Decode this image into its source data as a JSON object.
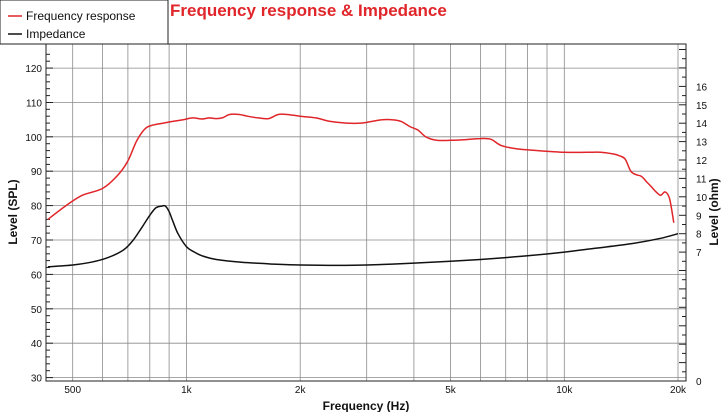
{
  "chart_data": {
    "type": "line",
    "title": "Frequency response & Impedance",
    "xlabel": "Frequency (Hz)",
    "ylabel_left": "Level (SPL)",
    "ylabel_right": "Level (ohm)",
    "x_scale": "log",
    "xlim": [
      425,
      21000
    ],
    "ylim_left": [
      29,
      127
    ],
    "ylim_right": [
      0,
      18.3
    ],
    "x_ticks": [
      {
        "value": 500,
        "label": "500"
      },
      {
        "value": 1000,
        "label": "1k"
      },
      {
        "value": 2000,
        "label": "2k"
      },
      {
        "value": 5000,
        "label": "5k"
      },
      {
        "value": 10000,
        "label": "10k"
      },
      {
        "value": 20000,
        "label": "20k"
      }
    ],
    "y_ticks_left": [
      30,
      40,
      50,
      60,
      70,
      80,
      90,
      100,
      110,
      120
    ],
    "y_ticks_right": [
      0,
      7,
      8,
      9,
      10,
      11,
      12,
      13,
      14,
      15,
      16
    ],
    "grid": true,
    "legend_position": "top-left",
    "colors": {
      "frequency_response": "#e0262a",
      "impedance": "#111111"
    },
    "series": [
      {
        "name": "Frequency response",
        "axis": "left",
        "x": [
          430,
          480,
          530,
          600,
          660,
          700,
          740,
          780,
          820,
          870,
          920,
          980,
          1040,
          1100,
          1150,
          1200,
          1250,
          1300,
          1380,
          1450,
          1550,
          1650,
          1750,
          1850,
          2000,
          2200,
          2400,
          2650,
          2900,
          3100,
          3300,
          3500,
          3700,
          3900,
          4100,
          4300,
          4600,
          5000,
          5500,
          6000,
          6400,
          6800,
          7500,
          8500,
          10000,
          11500,
          12500,
          13500,
          14000,
          14500,
          15000,
          15500,
          16000,
          16500,
          17000,
          17500,
          18000,
          18500,
          19000,
          19500
        ],
        "y": [
          76,
          80,
          83,
          85,
          89,
          93,
          99,
          102.5,
          103.5,
          104,
          104.5,
          105,
          105.5,
          105.2,
          105.5,
          105.3,
          105.6,
          106.5,
          106.5,
          106,
          105.5,
          105.3,
          106.5,
          106.5,
          106,
          105.5,
          104.5,
          104,
          104,
          104.5,
          105,
          105,
          104.5,
          103,
          102,
          100,
          99,
          99,
          99.2,
          99.5,
          99.3,
          97.5,
          96.5,
          96,
          95.5,
          95.5,
          95.5,
          95,
          94.5,
          93.5,
          90,
          89,
          88.5,
          87,
          85.5,
          84,
          83,
          84,
          82,
          75
        ]
      },
      {
        "name": "Impedance",
        "axis": "right",
        "x": [
          430,
          500,
          560,
          620,
          680,
          720,
          760,
          800,
          830,
          860,
          880,
          900,
          920,
          950,
          1000,
          1050,
          1100,
          1200,
          1400,
          1700,
          2000,
          2500,
          3000,
          4000,
          5000,
          6000,
          7000,
          8000,
          10000,
          12000,
          15000,
          18000,
          20000
        ],
        "y": [
          6.2,
          6.3,
          6.45,
          6.7,
          7.1,
          7.6,
          8.3,
          9.0,
          9.4,
          9.5,
          9.5,
          9.2,
          8.7,
          8.0,
          7.3,
          7.0,
          6.8,
          6.6,
          6.45,
          6.35,
          6.3,
          6.28,
          6.3,
          6.4,
          6.5,
          6.6,
          6.7,
          6.8,
          7.0,
          7.2,
          7.45,
          7.75,
          8.0
        ]
      }
    ]
  }
}
